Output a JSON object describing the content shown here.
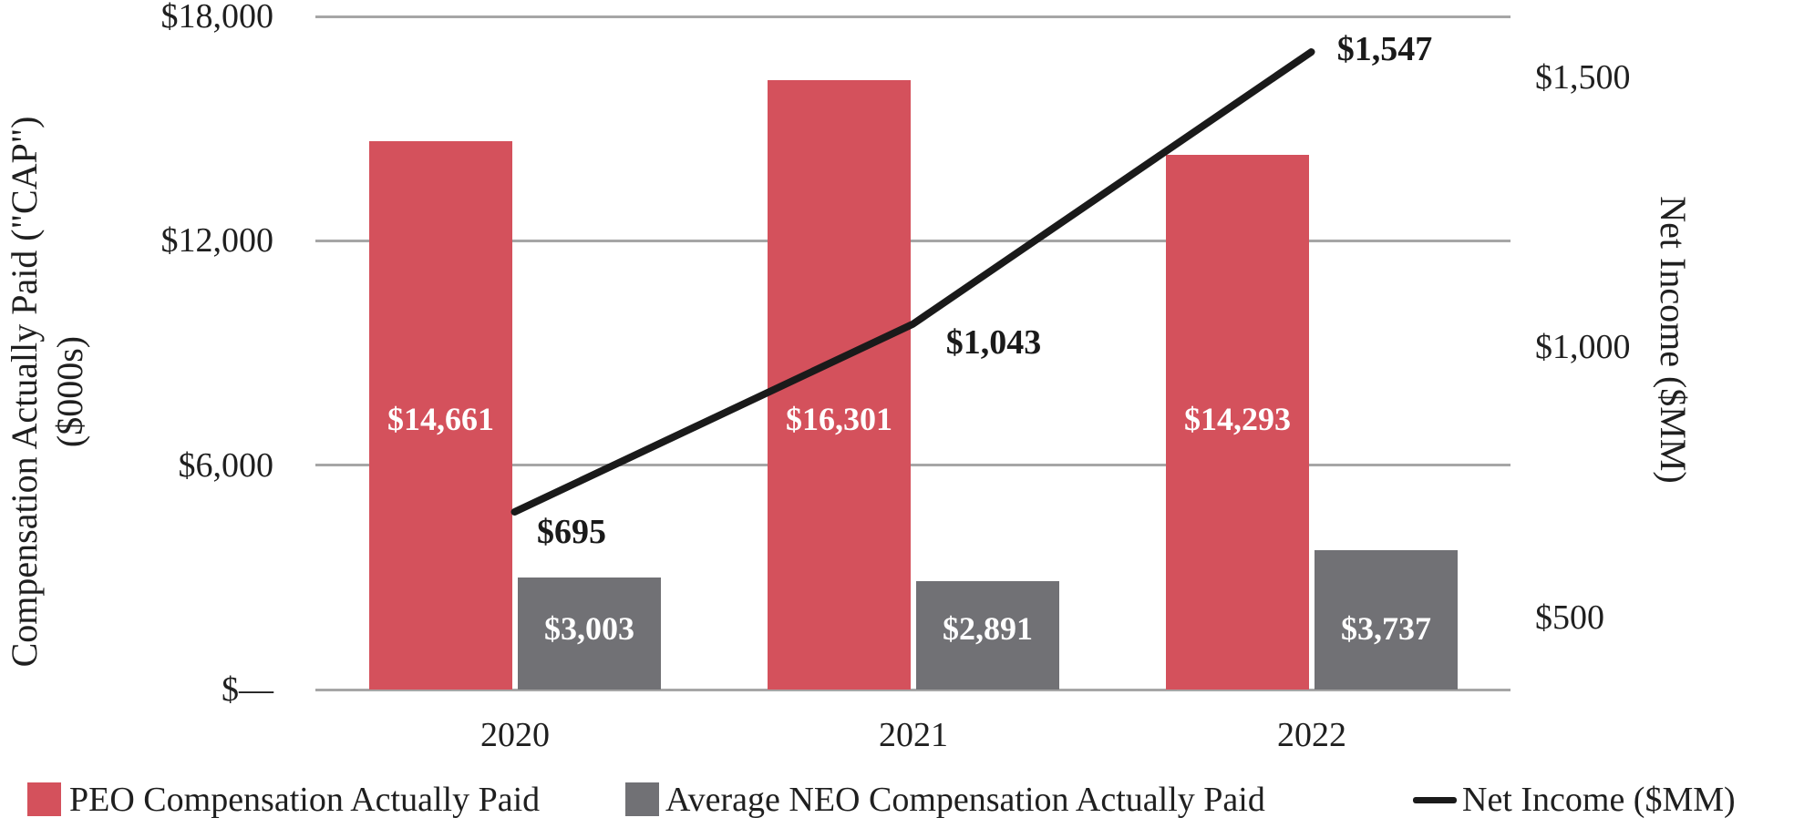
{
  "chart_data": {
    "type": "combo-bar-line",
    "categories": [
      "2020",
      "2021",
      "2022"
    ],
    "series": [
      {
        "name": "PEO Compensation Actually Paid",
        "type": "bar",
        "axis": "left",
        "color": "#d4515c",
        "label_color": "#ffffff",
        "values": [
          14661,
          16301,
          14293
        ],
        "labels": [
          "$14,661",
          "$16,301",
          "$14,293"
        ]
      },
      {
        "name": "Average NEO Compensation Actually Paid",
        "type": "bar",
        "axis": "left",
        "color": "#717175",
        "label_color": "#ffffff",
        "values": [
          3003,
          2891,
          3737
        ],
        "labels": [
          "$3,003",
          "$2,891",
          "$3,737"
        ]
      },
      {
        "name": "Net Income ($MM)",
        "type": "line",
        "axis": "right",
        "color": "#1a1a1a",
        "label_color": "#1a1a1a",
        "values": [
          695,
          1043,
          1547
        ],
        "labels": [
          "$695",
          "$1,043",
          "$1,547"
        ]
      }
    ],
    "left_axis": {
      "title_line1": "Compensation Actually Paid (\"CAP\")",
      "title_line2": "($000s)",
      "ticks": [
        "$18,000",
        "$12,000",
        "$6,000",
        "$—"
      ],
      "tick_values": [
        18000,
        12000,
        6000,
        0
      ],
      "range": [
        0,
        18000
      ]
    },
    "right_axis": {
      "title": "Net Income ($MM)",
      "ticks": [
        "$1,500",
        "$1,000",
        "$500"
      ],
      "tick_values": [
        1500,
        1000,
        500
      ]
    },
    "legend": [
      "PEO Compensation Actually Paid",
      "Average NEO Compensation Actually Paid",
      "Net Income ($MM)"
    ],
    "grid": true,
    "legend_position": "bottom",
    "gridline_color": "#a6a6a6"
  }
}
